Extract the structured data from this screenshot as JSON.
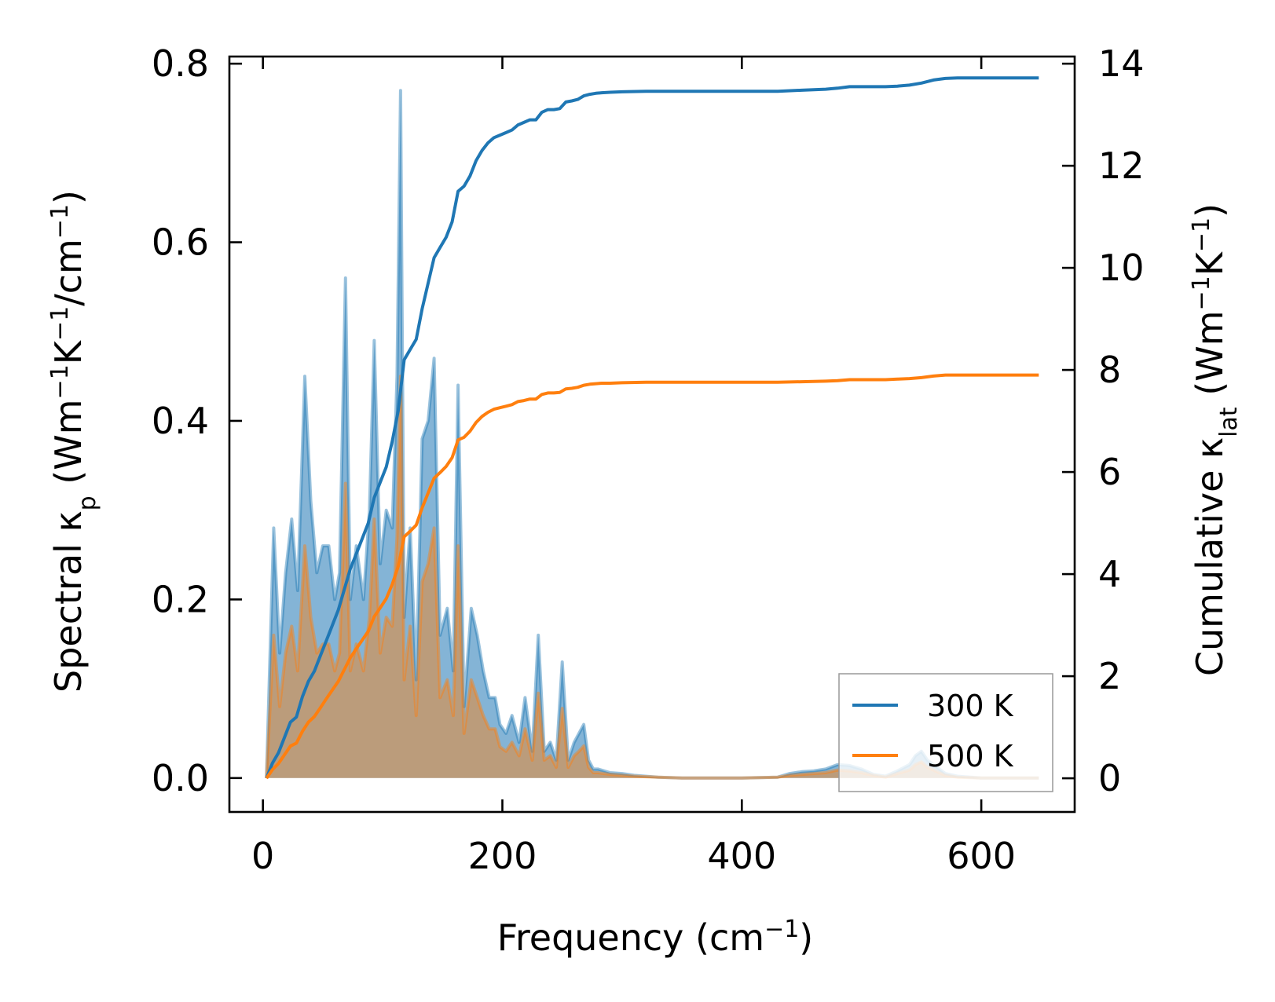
{
  "chart_data": {
    "type": "line",
    "xlabel": "Frequency (cm",
    "xlabel_sup": "−1",
    "xlabel_tail": ")",
    "ylabel_left_parts": [
      "Spectral κ",
      "p",
      " (Wm",
      "−1",
      "K",
      "−1",
      "/cm",
      "−1",
      ")"
    ],
    "ylabel_right_parts": [
      "Cumulative κ",
      "lat",
      " (Wm",
      "−1",
      "K",
      "−1",
      ")"
    ],
    "xlim": [
      -28,
      678
    ],
    "ylim_left": [
      -0.038,
      0.808
    ],
    "ylim_right": [
      -0.66,
      14.14
    ],
    "xticks": [
      0,
      200,
      400,
      600
    ],
    "xtick_labels": [
      "0",
      "200",
      "400",
      "600"
    ],
    "yticks_left": [
      0.0,
      0.2,
      0.4,
      0.6,
      0.8
    ],
    "ytick_labels_left": [
      "0.0",
      "0.2",
      "0.4",
      "0.6",
      "0.8"
    ],
    "yticks_right": [
      0,
      2,
      4,
      6,
      8,
      10,
      12,
      14
    ],
    "ytick_labels_right": [
      "0",
      "2",
      "4",
      "6",
      "8",
      "10",
      "12",
      "14"
    ],
    "legend_position": "lower-right",
    "series": [
      {
        "name": "300 K",
        "color": "#1f77b4",
        "fill": "rgba(31,119,180,0.55)",
        "spectral": {
          "x": [
            3,
            9,
            14,
            19,
            24,
            29,
            35,
            40,
            45,
            50,
            55,
            60,
            64,
            69,
            73,
            78,
            84,
            89,
            93,
            98,
            103,
            108,
            112,
            115,
            118,
            123,
            128,
            133,
            138,
            143,
            148,
            154,
            159,
            163,
            168,
            174,
            179,
            184,
            189,
            194,
            198,
            203,
            208,
            214,
            219,
            225,
            230,
            235,
            240,
            245,
            250,
            255,
            260,
            264,
            268,
            272,
            276,
            280,
            290,
            300,
            310,
            330,
            350,
            400,
            430,
            440,
            450,
            460,
            470,
            480,
            490,
            500,
            510,
            520,
            530,
            540,
            545,
            550,
            555,
            560,
            565,
            570,
            580,
            600,
            620,
            648
          ],
          "y": [
            0.0,
            0.28,
            0.14,
            0.23,
            0.29,
            0.21,
            0.45,
            0.31,
            0.23,
            0.26,
            0.26,
            0.2,
            0.23,
            0.56,
            0.2,
            0.26,
            0.2,
            0.3,
            0.49,
            0.24,
            0.3,
            0.28,
            0.45,
            0.77,
            0.18,
            0.28,
            0.11,
            0.38,
            0.4,
            0.47,
            0.16,
            0.19,
            0.12,
            0.44,
            0.08,
            0.19,
            0.16,
            0.12,
            0.09,
            0.09,
            0.06,
            0.05,
            0.07,
            0.04,
            0.09,
            0.03,
            0.16,
            0.03,
            0.04,
            0.02,
            0.13,
            0.02,
            0.04,
            0.05,
            0.06,
            0.02,
            0.01,
            0.01,
            0.006,
            0.005,
            0.003,
            0.001,
            0.0,
            0.0,
            0.001,
            0.005,
            0.007,
            0.008,
            0.01,
            0.015,
            0.014,
            0.01,
            0.004,
            0.002,
            0.008,
            0.015,
            0.025,
            0.03,
            0.02,
            0.015,
            0.01,
            0.005,
            0.002,
            0.0,
            0.0,
            0.0
          ]
        },
        "cumulative": {
          "x": [
            3,
            8,
            13,
            18,
            23,
            28,
            33,
            38,
            43,
            48,
            53,
            58,
            63,
            68,
            73,
            78,
            83,
            88,
            93,
            98,
            103,
            108,
            113,
            118,
            123,
            128,
            133,
            138,
            143,
            148,
            153,
            158,
            163,
            168,
            173,
            178,
            183,
            188,
            193,
            198,
            203,
            208,
            213,
            218,
            223,
            228,
            233,
            238,
            243,
            248,
            253,
            258,
            263,
            268,
            273,
            278,
            283,
            290,
            300,
            320,
            350,
            400,
            430,
            450,
            470,
            480,
            490,
            500,
            510,
            520,
            530,
            540,
            550,
            560,
            570,
            580,
            600,
            620,
            648
          ],
          "y": [
            0.0,
            0.3,
            0.5,
            0.8,
            1.1,
            1.2,
            1.6,
            1.9,
            2.1,
            2.4,
            2.7,
            3.0,
            3.3,
            3.7,
            4.1,
            4.4,
            4.7,
            5.0,
            5.5,
            5.8,
            6.1,
            6.6,
            7.2,
            8.2,
            8.4,
            8.6,
            9.2,
            9.7,
            10.2,
            10.4,
            10.6,
            10.9,
            11.5,
            11.6,
            11.8,
            12.1,
            12.3,
            12.45,
            12.55,
            12.6,
            12.65,
            12.7,
            12.8,
            12.85,
            12.9,
            12.9,
            13.05,
            13.1,
            13.1,
            13.12,
            13.25,
            13.27,
            13.3,
            13.37,
            13.4,
            13.42,
            13.43,
            13.44,
            13.45,
            13.46,
            13.46,
            13.46,
            13.46,
            13.48,
            13.5,
            13.52,
            13.55,
            13.55,
            13.55,
            13.55,
            13.56,
            13.58,
            13.62,
            13.68,
            13.71,
            13.72,
            13.72,
            13.72,
            13.72
          ]
        }
      },
      {
        "name": "500 K",
        "color": "#ff7f0e",
        "fill": "rgba(255,127,14,0.45)",
        "spectral": {
          "x": [
            3,
            9,
            14,
            19,
            24,
            29,
            35,
            40,
            45,
            50,
            55,
            60,
            64,
            69,
            73,
            78,
            84,
            89,
            93,
            98,
            103,
            108,
            112,
            115,
            118,
            123,
            128,
            133,
            138,
            143,
            148,
            154,
            159,
            163,
            168,
            174,
            179,
            184,
            189,
            194,
            198,
            203,
            208,
            214,
            219,
            225,
            230,
            235,
            240,
            245,
            250,
            255,
            260,
            264,
            268,
            272,
            276,
            280,
            290,
            300,
            310,
            330,
            350,
            400,
            430,
            440,
            450,
            460,
            470,
            480,
            490,
            500,
            510,
            520,
            530,
            540,
            545,
            550,
            555,
            560,
            565,
            570,
            580,
            600,
            620,
            648
          ],
          "y": [
            0.0,
            0.16,
            0.08,
            0.14,
            0.17,
            0.12,
            0.26,
            0.18,
            0.14,
            0.15,
            0.15,
            0.12,
            0.14,
            0.33,
            0.12,
            0.15,
            0.12,
            0.18,
            0.29,
            0.14,
            0.18,
            0.17,
            0.27,
            0.45,
            0.11,
            0.17,
            0.07,
            0.22,
            0.24,
            0.28,
            0.09,
            0.11,
            0.07,
            0.26,
            0.05,
            0.11,
            0.09,
            0.07,
            0.055,
            0.055,
            0.035,
            0.03,
            0.04,
            0.025,
            0.055,
            0.02,
            0.095,
            0.02,
            0.025,
            0.012,
            0.078,
            0.012,
            0.025,
            0.03,
            0.036,
            0.012,
            0.006,
            0.006,
            0.004,
            0.003,
            0.002,
            0.001,
            0.0,
            0.0,
            0.001,
            0.003,
            0.004,
            0.005,
            0.006,
            0.009,
            0.008,
            0.006,
            0.003,
            0.001,
            0.005,
            0.009,
            0.015,
            0.018,
            0.012,
            0.009,
            0.006,
            0.003,
            0.001,
            0.0,
            0.0,
            0.0
          ]
        },
        "cumulative": {
          "x": [
            3,
            8,
            13,
            18,
            23,
            28,
            33,
            38,
            43,
            48,
            53,
            58,
            63,
            68,
            73,
            78,
            83,
            88,
            93,
            98,
            103,
            108,
            113,
            118,
            123,
            128,
            133,
            138,
            143,
            148,
            153,
            158,
            163,
            168,
            173,
            178,
            183,
            188,
            193,
            198,
            203,
            208,
            213,
            218,
            223,
            228,
            233,
            238,
            243,
            248,
            253,
            258,
            263,
            268,
            273,
            278,
            283,
            290,
            300,
            320,
            350,
            400,
            430,
            450,
            470,
            480,
            490,
            500,
            510,
            520,
            530,
            540,
            550,
            560,
            570,
            580,
            600,
            620,
            648
          ],
          "y": [
            0.0,
            0.17,
            0.29,
            0.46,
            0.63,
            0.69,
            0.92,
            1.1,
            1.21,
            1.38,
            1.56,
            1.73,
            1.9,
            2.13,
            2.36,
            2.54,
            2.71,
            2.88,
            3.17,
            3.34,
            3.52,
            3.8,
            4.15,
            4.73,
            4.84,
            4.96,
            5.3,
            5.59,
            5.88,
            5.99,
            6.11,
            6.28,
            6.63,
            6.68,
            6.8,
            6.97,
            7.09,
            7.17,
            7.23,
            7.26,
            7.29,
            7.32,
            7.38,
            7.4,
            7.43,
            7.43,
            7.52,
            7.55,
            7.55,
            7.56,
            7.63,
            7.64,
            7.66,
            7.7,
            7.72,
            7.73,
            7.74,
            7.74,
            7.75,
            7.76,
            7.76,
            7.76,
            7.76,
            7.77,
            7.78,
            7.79,
            7.81,
            7.81,
            7.81,
            7.81,
            7.82,
            7.83,
            7.85,
            7.88,
            7.9,
            7.9,
            7.9,
            7.9,
            7.9
          ]
        }
      }
    ]
  }
}
